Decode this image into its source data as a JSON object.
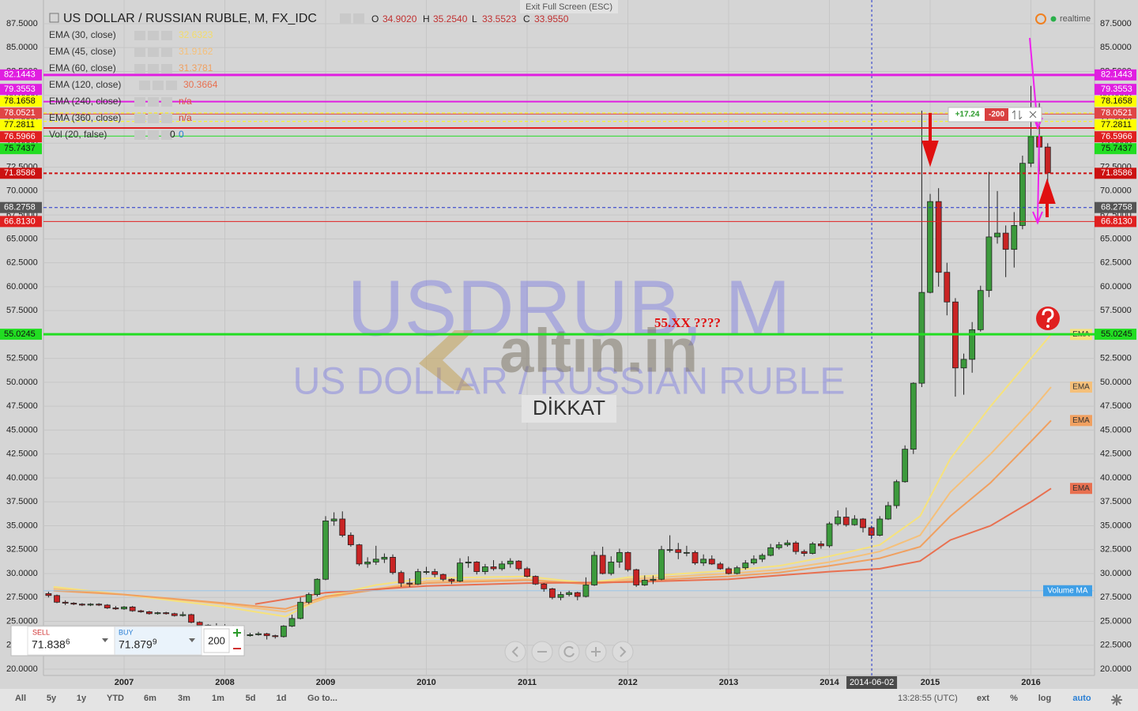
{
  "header": {
    "exit_fullscreen": "Exit Full Screen (ESC)",
    "realtime": "realtime"
  },
  "chart_data": {
    "type": "candlestick",
    "title": "US DOLLAR / RUSSIAN RUBLE, M, FX_IDC",
    "ohlc_legend": [
      {
        "label": "O",
        "value": "34.9020"
      },
      {
        "label": "H",
        "value": "35.2540"
      },
      {
        "label": "L",
        "value": "33.5523"
      },
      {
        "label": "C",
        "value": "33.9550"
      }
    ],
    "studies": [
      {
        "name": "EMA (30, close)",
        "value": "32.6323",
        "color": "#f3dc6a"
      },
      {
        "name": "EMA (45, close)",
        "value": "31.9162",
        "color": "#f5c07a"
      },
      {
        "name": "EMA (60, close)",
        "value": "31.3781",
        "color": "#f0a060"
      },
      {
        "name": "EMA (120, close)",
        "value": "30.3664",
        "color": "#e87050"
      },
      {
        "name": "EMA (240, close)",
        "value": "n/a",
        "color": "#e05040"
      },
      {
        "name": "EMA (360, close)",
        "value": "n/a",
        "color": "#d84030"
      },
      {
        "name": "Vol (20, false)",
        "value": "0",
        "value2": "0",
        "color": "#222222",
        "color2": "#2a7fd4"
      }
    ],
    "watermark": {
      "symbol": "USDRUB, M",
      "description": "US DOLLAR / RUSSIAN RUBLE",
      "logo": "altın.in",
      "note": "DİKKAT"
    },
    "categories": [
      null,
      null,
      null,
      null,
      null,
      null,
      null,
      null,
      null,
      "2007",
      null,
      null,
      null,
      null,
      null,
      null,
      null,
      null,
      null,
      null,
      null,
      "2008",
      null,
      null,
      null,
      null,
      null,
      null,
      null,
      null,
      null,
      null,
      null,
      "2009",
      null,
      null,
      null,
      null,
      null,
      null,
      null,
      null,
      null,
      null,
      null,
      "2010",
      null,
      null,
      null,
      null,
      null,
      null,
      null,
      null,
      null,
      null,
      null,
      "2011",
      null,
      null,
      null,
      null,
      null,
      null,
      null,
      null,
      null,
      null,
      null,
      "2012",
      null,
      null,
      null,
      null,
      null,
      null,
      null,
      null,
      null,
      null,
      null,
      "2013",
      null,
      null,
      null,
      null,
      null,
      null,
      null,
      null,
      null,
      null,
      null,
      "2014",
      null,
      null,
      null,
      null,
      null,
      null,
      null,
      null,
      null,
      null,
      null,
      "2015",
      null,
      null,
      null,
      null,
      null,
      null,
      null,
      null,
      null,
      null,
      null,
      "2016",
      null,
      null
    ],
    "open": [
      27.9,
      27.7,
      27.0,
      26.9,
      26.8,
      26.7,
      26.8,
      26.7,
      26.4,
      26.3,
      26.5,
      26.1,
      26.0,
      25.8,
      25.9,
      25.8,
      25.6,
      25.7,
      24.9,
      24.6,
      24.5,
      24.5,
      24.5,
      24.1,
      23.5,
      23.6,
      23.7,
      23.5,
      23.4,
      24.5,
      25.3,
      27.0,
      27.8,
      29.4,
      35.5,
      35.7,
      34.0,
      33.0,
      31.0,
      31.2,
      31.5,
      31.7,
      30.1,
      29.0,
      28.9,
      30.2,
      30.2,
      29.9,
      29.4,
      29.2,
      31.1,
      31.2,
      30.2,
      30.7,
      30.5,
      31.0,
      31.3,
      30.5,
      29.7,
      28.9,
      28.4,
      27.5,
      27.8,
      28.0,
      27.6,
      28.8,
      31.9,
      30.0,
      31.2,
      32.2,
      30.4,
      28.8,
      29.3,
      29.4,
      32.5,
      32.5,
      32.2,
      32.2,
      31.1,
      31.5,
      31.0,
      30.5,
      30.0,
      30.6,
      31.1,
      31.5,
      31.9,
      32.7,
      33.0,
      33.2,
      32.3,
      32.1,
      33.1,
      32.9,
      35.2,
      35.9,
      35.1,
      35.7,
      34.8,
      34.0,
      35.7,
      37.1,
      39.6,
      43.0,
      49.9,
      59.4,
      68.9,
      61.5,
      58.4,
      51.5,
      52.4,
      55.5,
      59.6,
      65.2,
      65.6,
      63.9,
      66.4,
      72.9,
      75.7,
      74.6
    ],
    "high": [
      28.1,
      27.8,
      27.2,
      27.0,
      26.9,
      26.9,
      26.9,
      26.8,
      26.6,
      26.6,
      26.6,
      26.2,
      26.1,
      26.0,
      26.0,
      25.9,
      26.0,
      25.8,
      25.0,
      24.7,
      24.8,
      24.7,
      24.6,
      24.2,
      23.8,
      23.9,
      23.8,
      23.6,
      24.6,
      25.7,
      27.5,
      28.0,
      29.5,
      36.0,
      36.4,
      36.5,
      34.3,
      33.1,
      31.7,
      32.9,
      32.1,
      32.0,
      30.3,
      29.5,
      30.5,
      30.7,
      30.5,
      30.0,
      29.5,
      31.6,
      31.8,
      31.3,
      31.0,
      31.4,
      31.3,
      31.6,
      31.4,
      30.7,
      29.8,
      29.0,
      28.5,
      28.1,
      28.2,
      28.1,
      29.6,
      32.3,
      32.8,
      31.8,
      32.6,
      32.3,
      30.5,
      29.8,
      29.8,
      32.9,
      34.0,
      33.2,
      32.9,
      32.4,
      32.0,
      31.9,
      31.2,
      30.7,
      30.8,
      31.4,
      31.9,
      32.1,
      33.1,
      33.3,
      33.5,
      33.4,
      32.5,
      33.3,
      33.4,
      35.4,
      36.6,
      36.9,
      36.1,
      35.8,
      35.0,
      36.0,
      37.5,
      39.8,
      43.4,
      50.0,
      78.4,
      69.7,
      70.3,
      62.5,
      58.8,
      53.0,
      56.3,
      60.1,
      72.0,
      70.0,
      66.4,
      67.8,
      73.7,
      81.0,
      79.2,
      75.0
    ],
    "low": [
      27.5,
      26.9,
      26.7,
      26.7,
      26.6,
      26.6,
      26.6,
      26.3,
      26.2,
      26.2,
      26.0,
      25.9,
      25.7,
      25.7,
      25.7,
      25.5,
      25.5,
      24.8,
      24.4,
      24.3,
      24.3,
      24.3,
      24.0,
      23.4,
      23.4,
      23.5,
      23.1,
      23.2,
      23.3,
      24.4,
      25.2,
      26.8,
      27.6,
      29.3,
      35.0,
      33.8,
      32.8,
      30.8,
      30.6,
      30.9,
      31.1,
      29.9,
      28.6,
      28.6,
      28.8,
      29.9,
      29.6,
      29.2,
      28.9,
      29.1,
      30.6,
      29.9,
      29.9,
      30.3,
      30.3,
      30.6,
      30.3,
      29.6,
      28.8,
      28.1,
      27.3,
      27.2,
      27.6,
      27.2,
      27.5,
      28.7,
      29.9,
      29.8,
      30.6,
      30.2,
      28.6,
      28.7,
      28.9,
      29.3,
      32.2,
      31.5,
      31.8,
      30.9,
      30.8,
      30.9,
      30.4,
      29.9,
      29.9,
      30.4,
      30.9,
      31.2,
      31.8,
      32.5,
      32.8,
      32.0,
      31.8,
      32.0,
      32.6,
      32.7,
      35.0,
      34.9,
      35.0,
      34.3,
      33.6,
      33.9,
      35.6,
      36.8,
      39.5,
      42.5,
      49.5,
      59.3,
      60.0,
      57.0,
      48.5,
      48.7,
      51.0,
      55.3,
      58.9,
      64.5,
      61.0,
      62.0,
      66.0,
      72.5,
      72.0,
      68.8
    ],
    "close": [
      27.7,
      27.0,
      26.9,
      26.8,
      26.7,
      26.8,
      26.7,
      26.4,
      26.3,
      26.5,
      26.1,
      26.0,
      25.8,
      25.9,
      25.8,
      25.6,
      25.7,
      24.9,
      24.6,
      24.5,
      24.5,
      24.5,
      24.1,
      23.5,
      23.6,
      23.7,
      23.5,
      23.4,
      24.5,
      25.3,
      27.0,
      27.8,
      29.4,
      35.5,
      35.7,
      34.0,
      33.0,
      31.0,
      31.2,
      31.5,
      31.7,
      30.1,
      29.0,
      28.9,
      30.2,
      30.2,
      29.9,
      29.4,
      29.2,
      31.1,
      31.2,
      30.2,
      30.7,
      30.5,
      31.0,
      31.3,
      30.5,
      29.7,
      28.9,
      28.4,
      27.5,
      27.8,
      28.0,
      27.6,
      28.8,
      31.9,
      30.0,
      31.2,
      32.2,
      30.4,
      28.8,
      29.3,
      29.4,
      32.5,
      32.5,
      32.2,
      32.2,
      31.1,
      31.5,
      31.0,
      30.5,
      30.0,
      30.6,
      31.1,
      31.5,
      31.9,
      32.7,
      33.0,
      33.2,
      32.3,
      32.1,
      33.1,
      32.9,
      35.2,
      35.9,
      35.1,
      35.7,
      34.8,
      34.0,
      35.7,
      37.1,
      39.6,
      43.0,
      49.9,
      59.4,
      68.9,
      61.5,
      58.4,
      51.5,
      52.4,
      55.5,
      59.6,
      65.2,
      65.6,
      63.9,
      66.4,
      72.9,
      75.7,
      74.6,
      71.9
    ],
    "up_color": "#3c9a3c",
    "down_color": "#c92424",
    "ema_lines": [
      {
        "tag": "EMA",
        "color": "#f6e27c",
        "x": [
          2006.3,
          2007,
          2008,
          2008.6,
          2009,
          2009.5,
          2010,
          2011,
          2011.6,
          2012,
          2013,
          2013.5,
          2014,
          2014.5,
          2014.9,
          2015.2,
          2015.6,
          2016,
          2016.2
        ],
        "values": [
          28.6,
          27.8,
          26.5,
          25.5,
          27.6,
          28.8,
          29.5,
          29.7,
          29.0,
          29.6,
          30.3,
          30.8,
          31.8,
          33.0,
          36.0,
          42.0,
          47.5,
          52.5,
          55.0
        ]
      },
      {
        "tag": "EMA",
        "color": "#f5c07a",
        "x": [
          2006.3,
          2007,
          2008,
          2008.6,
          2009,
          2009.5,
          2010,
          2011,
          2011.6,
          2012,
          2013,
          2013.5,
          2014,
          2014.5,
          2014.9,
          2015.2,
          2015.6,
          2016,
          2016.2
        ],
        "values": [
          28.4,
          27.8,
          26.8,
          26.0,
          27.4,
          28.4,
          29.2,
          29.4,
          28.9,
          29.4,
          30.0,
          30.4,
          31.2,
          32.3,
          34.0,
          38.5,
          42.5,
          47.0,
          49.5
        ]
      },
      {
        "tag": "EMA",
        "color": "#f0a060",
        "x": [
          2006.3,
          2007,
          2008,
          2008.6,
          2009,
          2009.5,
          2010,
          2011,
          2011.6,
          2012,
          2013,
          2013.5,
          2014,
          2014.5,
          2014.9,
          2015.2,
          2015.6,
          2016,
          2016.2
        ],
        "values": [
          28.2,
          27.8,
          26.9,
          26.3,
          27.6,
          28.3,
          29.0,
          29.3,
          28.9,
          29.2,
          29.7,
          30.1,
          30.8,
          31.6,
          32.8,
          36.0,
          39.5,
          43.8,
          46.0
        ]
      },
      {
        "tag": "EMA",
        "color": "#e87050",
        "x": [
          2008.3,
          2009,
          2010,
          2011,
          2012,
          2013,
          2014,
          2014.5,
          2014.9,
          2015.2,
          2015.6,
          2016,
          2016.2
        ],
        "values": [
          26.8,
          28.0,
          28.7,
          29.0,
          29.1,
          29.4,
          30.2,
          30.5,
          31.3,
          33.5,
          35.0,
          37.5,
          38.9
        ]
      }
    ],
    "volume_ma": {
      "label": "Volume MA",
      "value": 28.2,
      "color": "#3f9fe6"
    },
    "price_lines": [
      {
        "value": 82.1443,
        "color": "#e01ee0",
        "style": "solid",
        "width": 3
      },
      {
        "value": 79.3553,
        "color": "#e01ee0",
        "style": "solid",
        "width": 2
      },
      {
        "value": 78.1658,
        "color": "#ffff00",
        "style": "dashed",
        "width": 1
      },
      {
        "value": 78.0521,
        "color": "#e04545",
        "style": "solid",
        "width": 1
      },
      {
        "value": 77.2811,
        "color": "#ffff00",
        "style": "dashed",
        "width": 1
      },
      {
        "value": 76.5966,
        "color": "#e02020",
        "style": "solid",
        "width": 2
      },
      {
        "value": 75.7437,
        "color": "#22dd22",
        "style": "solid",
        "width": 1
      },
      {
        "value": 71.8586,
        "color": "#cc1111",
        "style": "dashed",
        "width": 2
      },
      {
        "value": 68.2758,
        "color": "#2233cc",
        "style": "dashed",
        "width": 1,
        "tag_color": "#555555"
      },
      {
        "value": 66.813,
        "label": "66.8130",
        "color": "#e02020",
        "style": "solid",
        "width": 1
      },
      {
        "value": 55.0245,
        "color": "#22dd22",
        "style": "solid",
        "width": 3
      }
    ],
    "crosshair": {
      "label": "2014-06-02",
      "x": 2014.42
    },
    "annotation": {
      "text": "55.XX ????"
    },
    "position_tool": {
      "profit": "+17.24",
      "quantity": "-200"
    },
    "xlim": [
      2006.2,
      2016.631
    ],
    "ylim": [
      19.34,
      89.98
    ],
    "yticks": [
      {
        "value": 20,
        "label": "20.0000"
      },
      {
        "value": 22.5,
        "label": "22.5000"
      },
      {
        "value": 25,
        "label": "25.0000"
      },
      {
        "value": 27.5,
        "label": "27.5000"
      },
      {
        "value": 30,
        "label": "30.0000"
      },
      {
        "value": 32.5,
        "label": "32.5000"
      },
      {
        "value": 35,
        "label": "35.0000"
      },
      {
        "value": 37.5,
        "label": "37.5000"
      },
      {
        "value": 40,
        "label": "40.0000"
      },
      {
        "value": 42.5,
        "label": "42.5000"
      },
      {
        "value": 45,
        "label": "45.0000"
      },
      {
        "value": 47.5,
        "label": "47.5000"
      },
      {
        "value": 50,
        "label": "50.0000"
      },
      {
        "value": 52.5,
        "label": "52.5000"
      },
      {
        "value": 55,
        "label": "55.0000"
      },
      {
        "value": 57.5,
        "label": "57.5000"
      },
      {
        "value": 60,
        "label": "60.0000"
      },
      {
        "value": 62.5,
        "label": "62.5000"
      },
      {
        "value": 65,
        "label": "65.0000"
      },
      {
        "value": 67.5,
        "label": "67.5000"
      },
      {
        "value": 70,
        "label": "70.0000"
      },
      {
        "value": 72.5,
        "label": "72.5000"
      },
      {
        "value": 75,
        "label": "75.0000"
      },
      {
        "value": 77.5,
        "label": "77.5000"
      },
      {
        "value": 80,
        "label": "80.0000"
      },
      {
        "value": 82.5,
        "label": "82.5000"
      },
      {
        "value": 85,
        "label": "85.0000"
      },
      {
        "value": 87.5,
        "label": "87.5000"
      }
    ],
    "grid": true
  },
  "trade_panel": {
    "sell_label": "SELL",
    "sell_price": "71.838",
    "sell_pip": "6",
    "buy_label": "BUY",
    "buy_price": "71.879",
    "buy_pip": "9",
    "quantity": "200"
  },
  "toolbar": {
    "ranges": [
      "All",
      "5y",
      "1y",
      "YTD",
      "6m",
      "3m",
      "1m",
      "5d",
      "1d"
    ],
    "goto": "Go to...",
    "time": "13:28:55 (UTC)",
    "options": [
      "ext",
      "%",
      "log",
      "auto"
    ]
  }
}
